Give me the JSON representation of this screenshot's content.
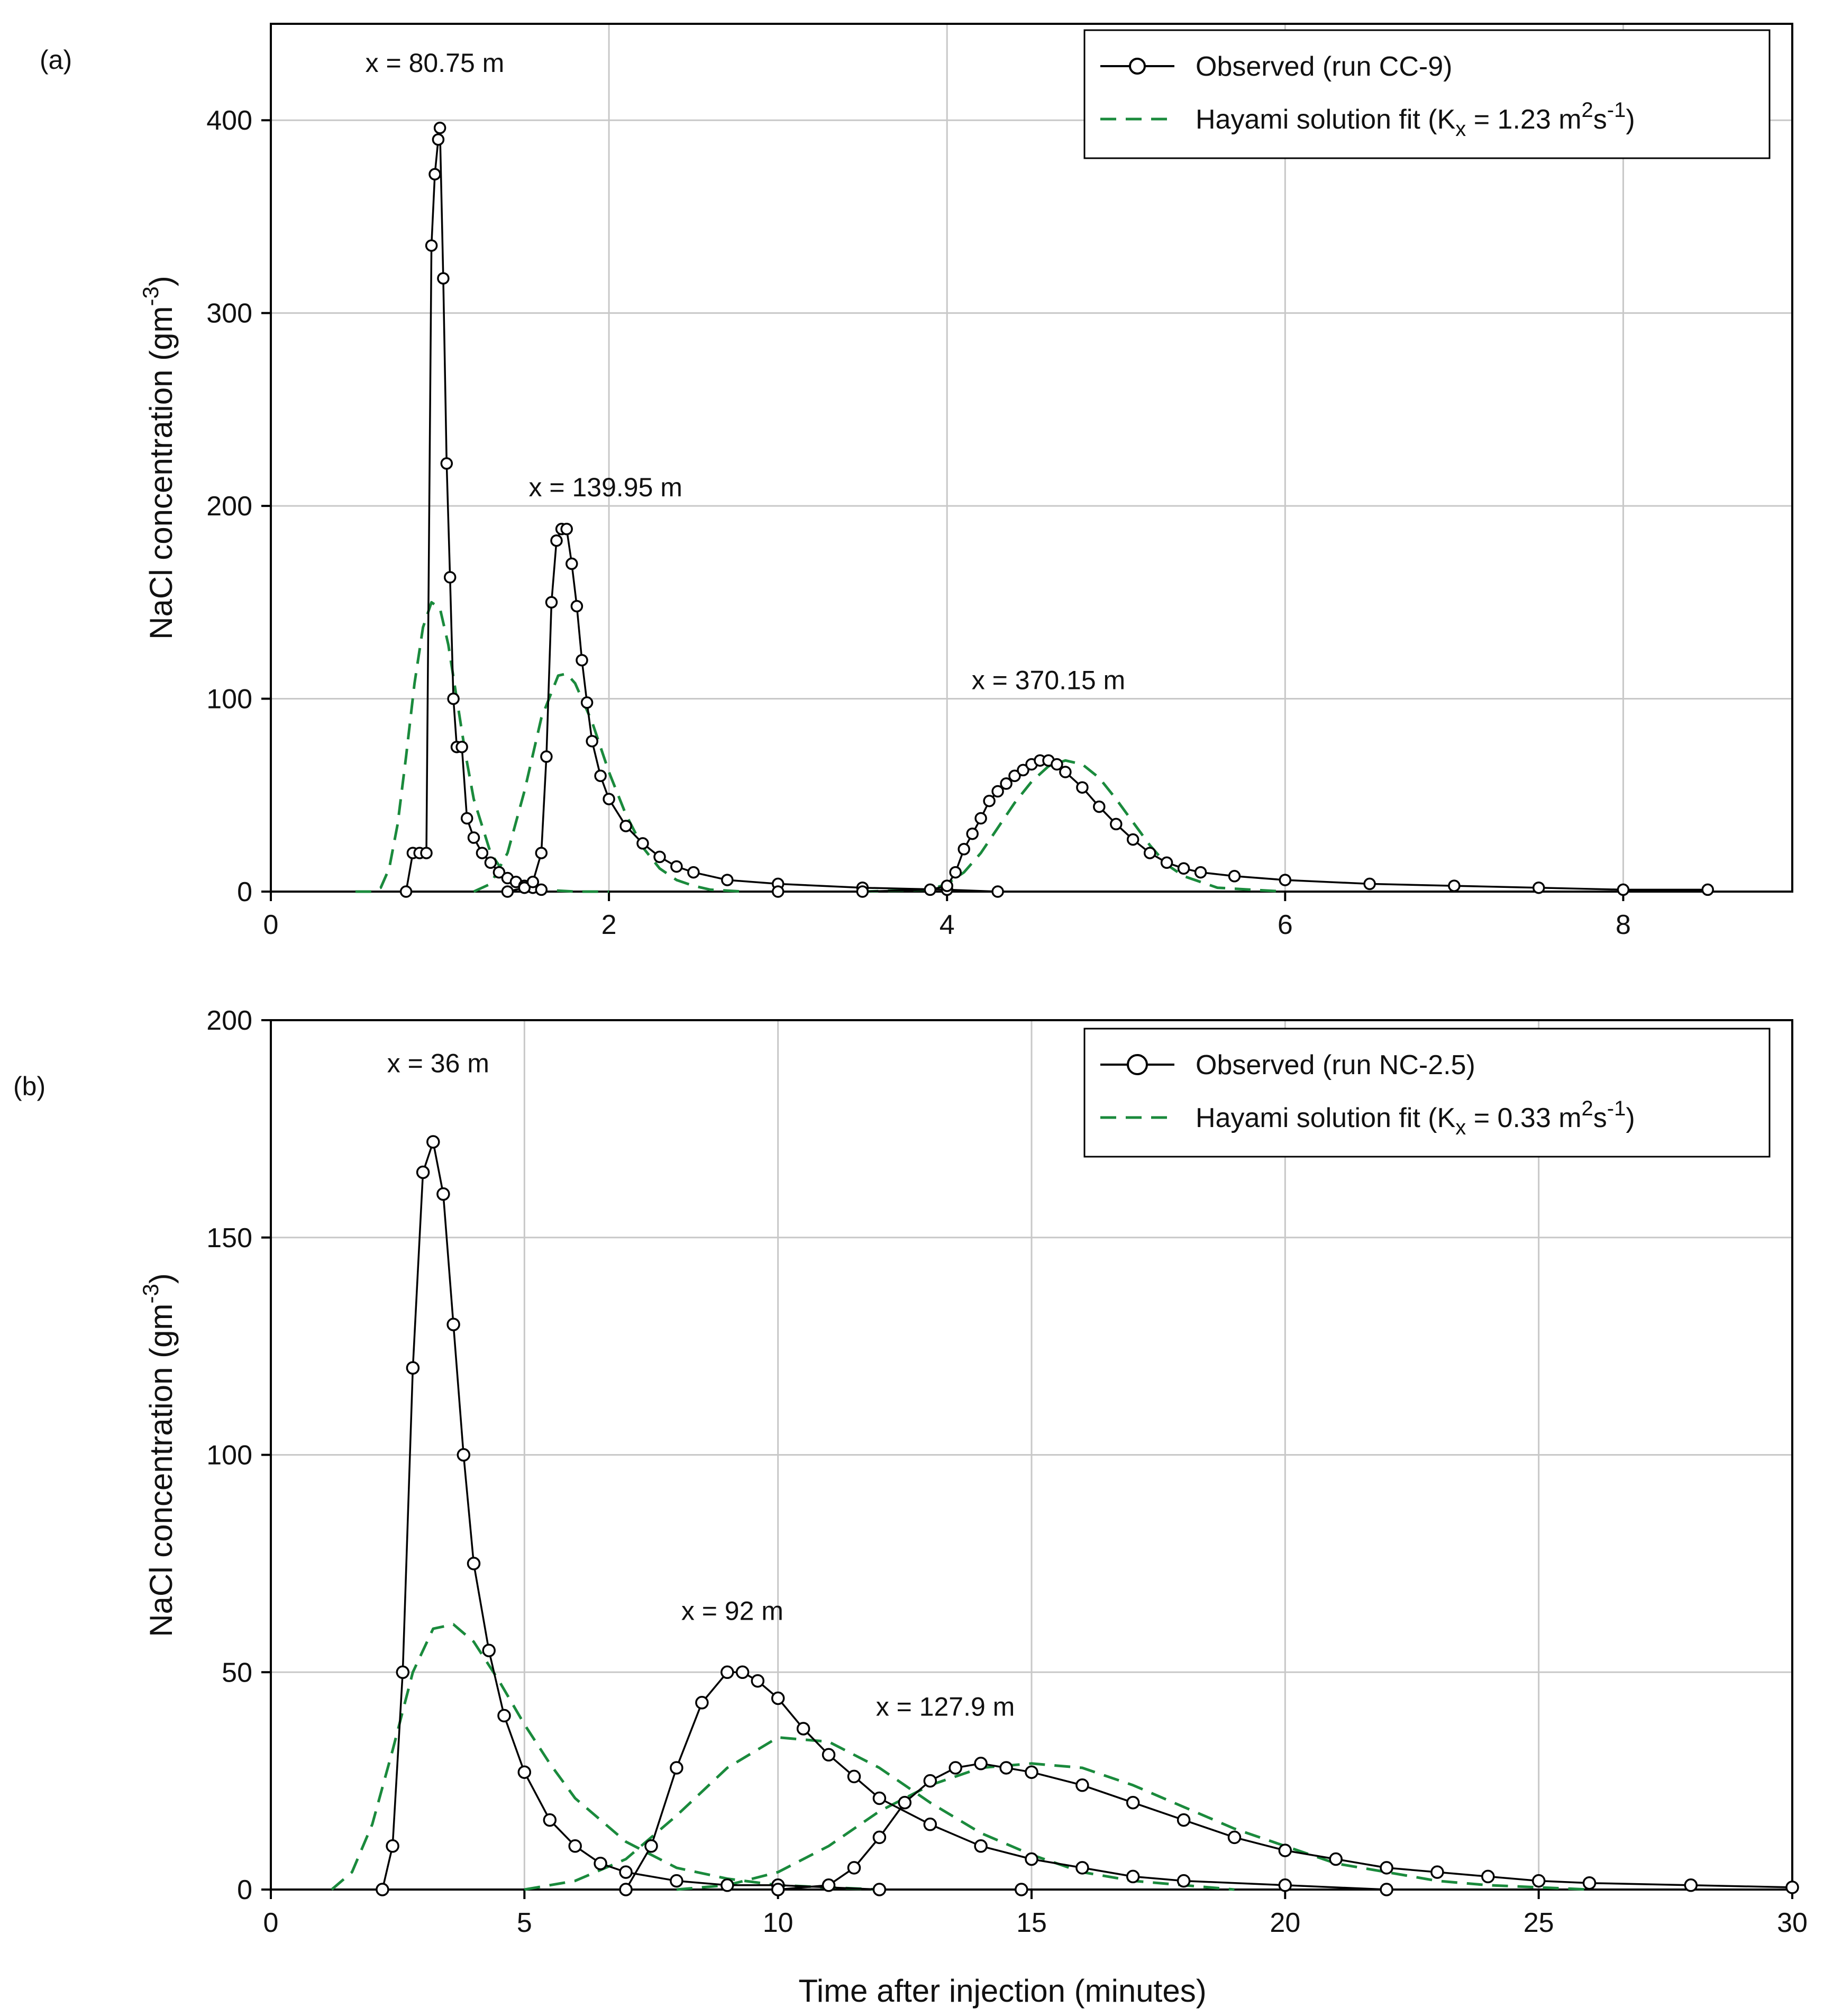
{
  "chart_data": [
    {
      "panel_label": "(a)",
      "type": "line",
      "xlabel": "",
      "ylabel": "NaCl concentration (gm",
      "ylabel_sup": "-3",
      "ylabel_close": ")",
      "xlim": [
        0,
        9
      ],
      "ylim": [
        0,
        450
      ],
      "xticks": [
        0,
        2,
        4,
        6,
        8
      ],
      "yticks": [
        0,
        100,
        200,
        300,
        400
      ],
      "grid": true,
      "legend": {
        "position": "top-right",
        "observed": "Observed (run CC-9)",
        "fit_prefix": "Hayami solution fit (K",
        "fit_sub": "x",
        "fit_mid": " = 1.23 m",
        "fit_sup1": "2",
        "fit_mid2": "s",
        "fit_sup2": "-1",
        "fit_close": ")"
      },
      "annotations": [
        {
          "text": "x = 80.75 m",
          "x": 0.97,
          "y": 425
        },
        {
          "text": "x = 139.95 m",
          "x": 1.98,
          "y": 205
        },
        {
          "text": "x = 370.15 m",
          "x": 4.6,
          "y": 105
        }
      ],
      "series": [
        {
          "name": "Observed x = 80.75 m",
          "style": "observed",
          "x": [
            0.8,
            0.84,
            0.88,
            0.92,
            0.95,
            0.97,
            0.99,
            1.0,
            1.02,
            1.04,
            1.06,
            1.08,
            1.1,
            1.13,
            1.16,
            1.2,
            1.25,
            1.3,
            1.35,
            1.4,
            1.45,
            1.5,
            1.55,
            1.6
          ],
          "y": [
            0,
            20,
            20,
            20,
            335,
            372,
            390,
            396,
            318,
            222,
            163,
            100,
            75,
            75,
            38,
            28,
            20,
            15,
            10,
            7,
            5,
            3,
            2,
            1
          ]
        },
        {
          "name": "Fit x = 80.75 m",
          "style": "fit",
          "x": [
            0.5,
            0.6,
            0.65,
            0.7,
            0.75,
            0.8,
            0.85,
            0.9,
            0.95,
            1.0,
            1.05,
            1.1,
            1.15,
            1.2,
            1.3,
            1.4,
            1.5,
            1.6,
            1.8,
            2.0
          ],
          "y": [
            0,
            0,
            2,
            12,
            35,
            70,
            108,
            137,
            150,
            147,
            128,
            100,
            72,
            48,
            20,
            7,
            2,
            1,
            0,
            0
          ]
        },
        {
          "name": "Observed x = 139.95 m",
          "style": "observed",
          "x": [
            1.4,
            1.5,
            1.55,
            1.6,
            1.63,
            1.66,
            1.69,
            1.72,
            1.75,
            1.78,
            1.81,
            1.84,
            1.87,
            1.9,
            1.95,
            2.0,
            2.1,
            2.2,
            2.3,
            2.4,
            2.5,
            2.7,
            3.0,
            3.5,
            4.0,
            4.3
          ],
          "y": [
            0,
            2,
            5,
            20,
            70,
            150,
            182,
            188,
            188,
            170,
            148,
            120,
            98,
            78,
            60,
            48,
            34,
            25,
            18,
            13,
            10,
            6,
            4,
            2,
            1,
            0
          ]
        },
        {
          "name": "Fit x = 139.95 m",
          "style": "fit",
          "x": [
            1.2,
            1.3,
            1.4,
            1.5,
            1.6,
            1.7,
            1.75,
            1.8,
            1.9,
            2.0,
            2.1,
            2.2,
            2.3,
            2.4,
            2.5,
            2.6,
            2.8
          ],
          "y": [
            0,
            4,
            20,
            52,
            90,
            112,
            113,
            108,
            88,
            62,
            40,
            23,
            12,
            6,
            3,
            1,
            0
          ]
        },
        {
          "name": "Observed x = 370.15 m",
          "style": "observed",
          "x": [
            3.0,
            3.5,
            3.9,
            4.0,
            4.05,
            4.1,
            4.15,
            4.2,
            4.25,
            4.3,
            4.35,
            4.4,
            4.45,
            4.5,
            4.55,
            4.6,
            4.65,
            4.7,
            4.8,
            4.9,
            5.0,
            5.1,
            5.2,
            5.3,
            5.4,
            5.5,
            5.7,
            6.0,
            6.5,
            7.0,
            7.5,
            8.0,
            8.5
          ],
          "y": [
            0,
            0,
            1,
            3,
            10,
            22,
            30,
            38,
            47,
            52,
            56,
            60,
            63,
            66,
            68,
            68,
            66,
            62,
            54,
            44,
            35,
            27,
            20,
            15,
            12,
            10,
            8,
            6,
            4,
            3,
            2,
            1,
            1
          ]
        },
        {
          "name": "Fit x = 370.15 m",
          "style": "fit",
          "x": [
            3.5,
            3.9,
            4.0,
            4.1,
            4.2,
            4.3,
            4.4,
            4.5,
            4.6,
            4.7,
            4.8,
            4.9,
            5.0,
            5.1,
            5.2,
            5.3,
            5.4,
            5.6,
            5.8,
            6.0
          ],
          "y": [
            0,
            1,
            4,
            10,
            20,
            33,
            46,
            57,
            65,
            68,
            66,
            59,
            48,
            36,
            24,
            14,
            8,
            2,
            1,
            0
          ]
        }
      ]
    },
    {
      "panel_label": "(b)",
      "type": "line",
      "xlabel": "Time after injection (minutes)",
      "ylabel": "NaCl concentration (gm",
      "ylabel_sup": "-3",
      "ylabel_close": ")",
      "xlim": [
        0,
        30
      ],
      "ylim": [
        0,
        200
      ],
      "xticks": [
        0,
        5,
        10,
        15,
        20,
        25,
        30
      ],
      "yticks": [
        0,
        50,
        100,
        150,
        200
      ],
      "grid": true,
      "legend": {
        "position": "top-right",
        "observed": "Observed (run NC-2.5)",
        "fit_prefix": "Hayami solution fit (K",
        "fit_sub": "x",
        "fit_mid": " = 0.33 m",
        "fit_sup1": "2",
        "fit_mid2": "s",
        "fit_sup2": "-1",
        "fit_close": ")"
      },
      "annotations": [
        {
          "text": "x = 36 m",
          "x": 3.3,
          "y": 188
        },
        {
          "text": "x = 92 m",
          "x": 9.1,
          "y": 62
        },
        {
          "text": "x = 127.9 m",
          "x": 13.3,
          "y": 40
        }
      ],
      "series": [
        {
          "name": "Observed x = 36 m",
          "style": "observed",
          "x": [
            2.2,
            2.4,
            2.6,
            2.8,
            3.0,
            3.2,
            3.4,
            3.6,
            3.8,
            4.0,
            4.3,
            4.6,
            5.0,
            5.5,
            6.0,
            6.5,
            7.0,
            8.0,
            9.0,
            10.0,
            12.0,
            14.8
          ],
          "y": [
            0,
            10,
            50,
            120,
            165,
            172,
            160,
            130,
            100,
            75,
            55,
            40,
            27,
            16,
            10,
            6,
            4,
            2,
            1,
            1,
            0,
            0
          ]
        },
        {
          "name": "Fit x = 36 m",
          "style": "fit",
          "x": [
            1.2,
            1.6,
            2.0,
            2.4,
            2.8,
            3.2,
            3.6,
            4.0,
            4.5,
            5.0,
            5.5,
            6.0,
            7.0,
            8.0,
            9.0,
            10.0,
            11.0,
            12.0
          ],
          "y": [
            0,
            4,
            15,
            32,
            50,
            60,
            61,
            57,
            48,
            38,
            29,
            21,
            11,
            5,
            2.5,
            1,
            0.5,
            0
          ]
        },
        {
          "name": "Observed x = 92 m",
          "style": "observed",
          "x": [
            7.0,
            7.5,
            8.0,
            8.5,
            9.0,
            9.3,
            9.6,
            10.0,
            10.5,
            11.0,
            11.5,
            12.0,
            13.0,
            14.0,
            15.0,
            16.0,
            17.0,
            18.0,
            20.0,
            22.0
          ],
          "y": [
            0,
            10,
            28,
            43,
            50,
            50,
            48,
            44,
            37,
            31,
            26,
            21,
            15,
            10,
            7,
            5,
            3,
            2,
            1,
            0
          ]
        },
        {
          "name": "Fit x = 92 m",
          "style": "fit",
          "x": [
            5.0,
            6.0,
            7.0,
            8.0,
            9.0,
            10.0,
            11.0,
            12.0,
            13.0,
            14.0,
            15.0,
            16.0,
            17.0,
            18.0,
            19.0
          ],
          "y": [
            0,
            2,
            7,
            17,
            28,
            35,
            34,
            28,
            20,
            13,
            8,
            4,
            2,
            1,
            0
          ]
        },
        {
          "name": "Observed x = 127.9 m",
          "style": "observed",
          "x": [
            10.0,
            11.0,
            11.5,
            12.0,
            12.5,
            13.0,
            13.5,
            14.0,
            14.5,
            15.0,
            16.0,
            17.0,
            18.0,
            19.0,
            20.0,
            21.0,
            22.0,
            23.0,
            24.0,
            25.0,
            26.0,
            28.0,
            30.0
          ],
          "y": [
            0,
            1,
            5,
            12,
            20,
            25,
            28,
            29,
            28,
            27,
            24,
            20,
            16,
            12,
            9,
            7,
            5,
            4,
            3,
            2,
            1.5,
            1,
            0.5
          ]
        },
        {
          "name": "Fit x = 127.9 m",
          "style": "fit",
          "x": [
            8.0,
            9.0,
            10.0,
            11.0,
            12.0,
            13.0,
            14.0,
            15.0,
            16.0,
            17.0,
            18.0,
            19.0,
            20.0,
            21.0,
            22.0,
            23.0,
            24.0,
            25.0,
            26.0
          ],
          "y": [
            0,
            1,
            4,
            10,
            18,
            24,
            28,
            29,
            28,
            24,
            19,
            14,
            10,
            6,
            4,
            2,
            1,
            0.5,
            0
          ]
        }
      ]
    }
  ],
  "colors": {
    "observed": "#000000",
    "fit": "#1a8a3c",
    "grid": "#c8c8c8",
    "axis": "#000000"
  }
}
